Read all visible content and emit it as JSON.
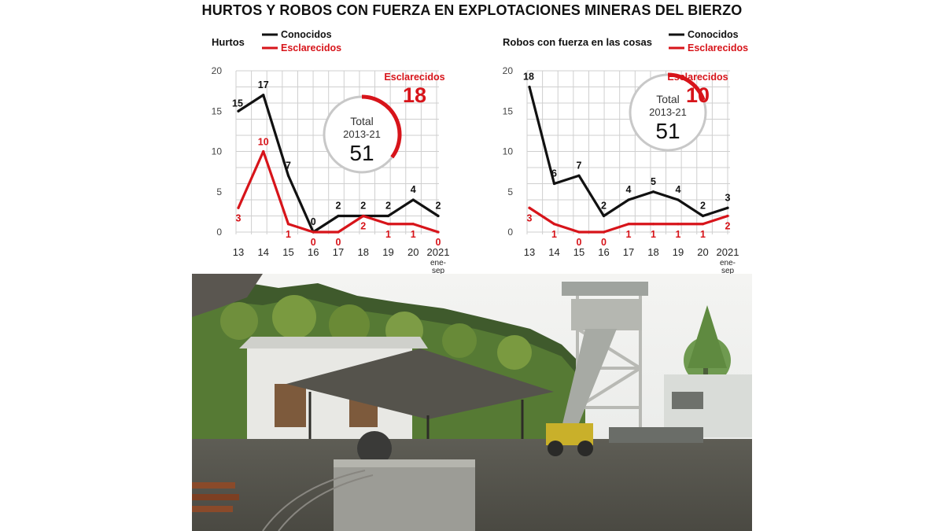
{
  "title": "HURTOS Y ROBOS CON FUERZA EN EXPLOTACIONES MINERAS DEL BIERZO",
  "colors": {
    "known": "#111111",
    "solved": "#d7141a",
    "grid": "#cfcfcf",
    "circle": "#c8c8c8"
  },
  "chart_data": [
    {
      "type": "line",
      "title": "Hurtos",
      "x": [
        "13",
        "14",
        "15",
        "16",
        "17",
        "18",
        "19",
        "20",
        "2021"
      ],
      "x_last_note": [
        "ene-",
        "sep"
      ],
      "ylim": [
        0,
        20
      ],
      "yticks": [
        0,
        5,
        10,
        15,
        20
      ],
      "legend": [
        "Conocidos",
        "Esclarecidos"
      ],
      "legend_position": "top",
      "grid": true,
      "series": [
        {
          "name": "Conocidos",
          "values": [
            15,
            17,
            7,
            0,
            2,
            2,
            2,
            4,
            2
          ]
        },
        {
          "name": "Esclarecidos",
          "values": [
            3,
            10,
            1,
            0,
            0,
            2,
            1,
            1,
            0
          ]
        }
      ],
      "summary": {
        "total_label": "Total",
        "period": "2013-21",
        "total": "51",
        "solved_label": "Esclarecidos",
        "solved": "18"
      }
    },
    {
      "type": "line",
      "title": "Robos con fuerza en las cosas",
      "x": [
        "13",
        "14",
        "15",
        "16",
        "17",
        "18",
        "19",
        "20",
        "2021"
      ],
      "x_last_note": [
        "ene-",
        "sep"
      ],
      "ylim": [
        0,
        20
      ],
      "yticks": [
        0,
        5,
        10,
        15,
        20
      ],
      "legend": [
        "Conocidos",
        "Esclarecidos"
      ],
      "legend_position": "top",
      "grid": true,
      "series": [
        {
          "name": "Conocidos",
          "values": [
            18,
            6,
            7,
            2,
            4,
            5,
            4,
            2,
            3
          ]
        },
        {
          "name": "Esclarecidos",
          "values": [
            3,
            1,
            0,
            0,
            1,
            1,
            1,
            1,
            2
          ]
        }
      ],
      "summary": {
        "total_label": "Total",
        "period": "2013-21",
        "total": "51",
        "solved_label": "Esclarecidos",
        "solved": "10"
      }
    }
  ],
  "photo": {
    "subject": "mine-site-photo"
  }
}
